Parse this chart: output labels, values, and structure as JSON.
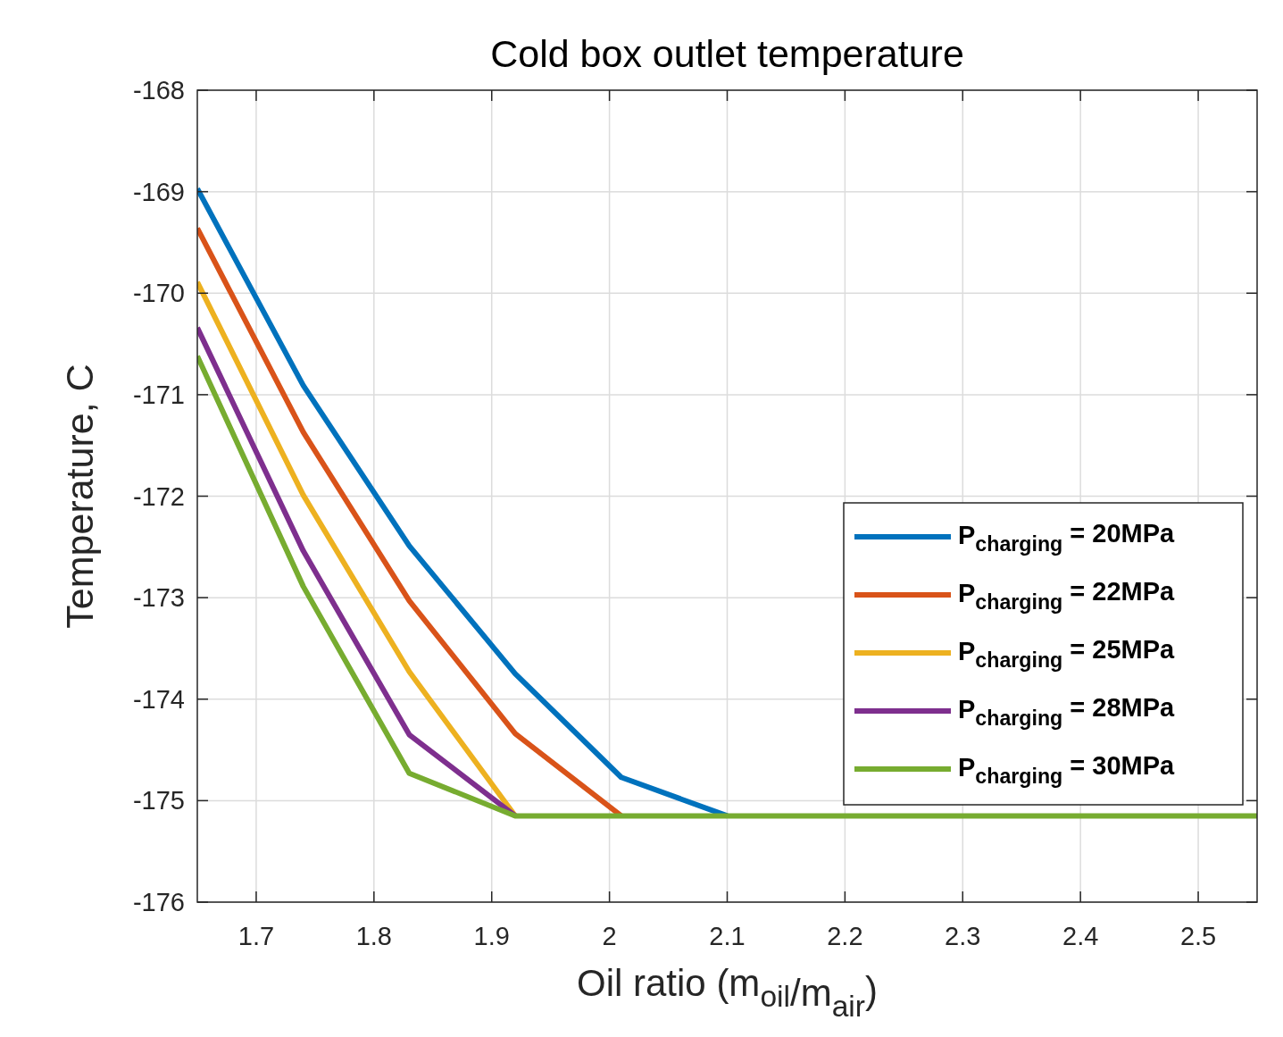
{
  "chart_data": {
    "type": "line",
    "title": "Cold box outlet temperature",
    "xlabel": "Oil ratio (m$_{oil}$/m$_{air}$)",
    "ylabel": "Temperature, C",
    "x": [
      1.65,
      1.74,
      1.83,
      1.92,
      2.01,
      2.1,
      2.19,
      2.28,
      2.37,
      2.46,
      2.55
    ],
    "series": [
      {
        "name": "P$_{charging}$ = 20MPa",
        "color": "#0072bd",
        "values": [
          -168.97,
          -170.91,
          -172.49,
          -173.75,
          -174.77,
          -175.15,
          null,
          null,
          null,
          null,
          null
        ]
      },
      {
        "name": "P$_{charging}$ = 22MPa",
        "color": "#d95319",
        "values": [
          -169.36,
          -171.37,
          -173.03,
          -174.34,
          -175.15,
          null,
          null,
          null,
          null,
          null,
          null
        ]
      },
      {
        "name": "P$_{charging}$ = 25MPa",
        "color": "#edb120",
        "values": [
          -169.89,
          -171.99,
          -173.73,
          -175.15,
          null,
          null,
          null,
          null,
          null,
          null,
          null
        ]
      },
      {
        "name": "P$_{charging}$ = 28MPa",
        "color": "#7e2f8e",
        "values": [
          -170.34,
          -172.54,
          -174.35,
          -175.15,
          null,
          null,
          null,
          null,
          null,
          null,
          null
        ]
      },
      {
        "name": "P$_{charging}$ = 30MPa",
        "color": "#77ac30",
        "values": [
          -170.62,
          -172.89,
          -174.73,
          -175.15,
          -175.15,
          -175.15,
          -175.15,
          -175.15,
          -175.15,
          -175.15,
          -175.15
        ]
      }
    ],
    "xlim": [
      1.65,
      2.55
    ],
    "xticks": [
      1.7,
      1.8,
      1.9,
      2,
      2.1,
      2.2,
      2.3,
      2.4,
      2.5
    ],
    "ylim": [
      -176,
      -168
    ],
    "yticks": [
      -176,
      -175,
      -174,
      -173,
      -172,
      -171,
      -170,
      -169,
      -168
    ],
    "grid": true,
    "legend": "right",
    "marker": "none",
    "line_style": "solid"
  }
}
